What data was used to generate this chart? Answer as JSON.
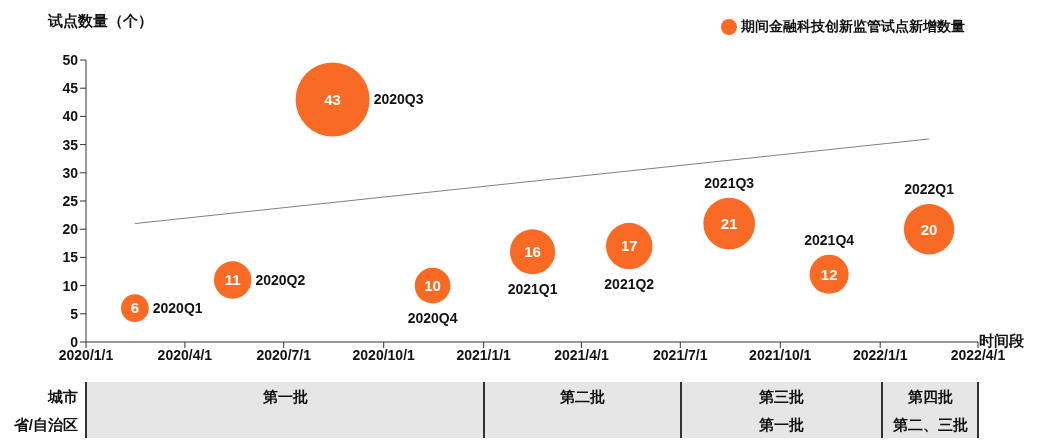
{
  "chart_data": {
    "type": "bubble",
    "ylabel": "试点数量（个）",
    "xlabel": "时间段",
    "x": [
      "2020-02-15",
      "2020-05-15",
      "2020-08-15",
      "2020-11-15",
      "2021-02-15",
      "2021-05-15",
      "2021-08-15",
      "2021-11-15",
      "2022-02-15"
    ],
    "series": [
      {
        "name": "期间金融科技创新监管试点新增数量",
        "color": "#f96a24",
        "marker": "circle",
        "values": [
          6,
          11,
          43,
          10,
          16,
          17,
          21,
          12,
          20
        ],
        "value_labels": [
          "6",
          "11",
          "43",
          "10",
          "16",
          "17",
          "21",
          "12",
          "20"
        ],
        "sizes": [
          0.14,
          0.256,
          1,
          0.233,
          0.372,
          0.395,
          0.488,
          0.279,
          0.465
        ]
      },
      {
        "type": "line",
        "color": "#808080",
        "marker": "none",
        "x": [
          "2020-02-15",
          "2022-02-15"
        ],
        "values": [
          21,
          36
        ]
      }
    ],
    "xlim": [
      "2020-01-01",
      "2022-04-01"
    ],
    "xticks": [
      {
        "value": "2020-01-01",
        "label": "2020/1/1"
      },
      {
        "value": "2020-04-01",
        "label": "2020/4/1"
      },
      {
        "value": "2020-07-01",
        "label": "2020/7/1"
      },
      {
        "value": "2020-10-01",
        "label": "2020/10/1"
      },
      {
        "value": "2021-01-01",
        "label": "2021/1/1"
      },
      {
        "value": "2021-04-01",
        "label": "2021/4/1"
      },
      {
        "value": "2021-07-01",
        "label": "2021/7/1"
      },
      {
        "value": "2021-10-01",
        "label": "2021/10/1"
      },
      {
        "value": "2022-01-01",
        "label": "2022/1/1"
      },
      {
        "value": "2022-04-01",
        "label": "2022/4/1"
      }
    ],
    "ylim": [
      0,
      50
    ],
    "yticks": [
      0,
      5,
      10,
      15,
      20,
      25,
      30,
      35,
      40,
      45,
      50
    ],
    "legend": "top right",
    "grid": false,
    "annotations": [
      {
        "text": "2020Q1",
        "x": "2020-02-15",
        "y": 6
      },
      {
        "text": "2020Q2",
        "x": "2020-05-15",
        "y": 11
      },
      {
        "text": "2020Q3",
        "x": "2020-08-15",
        "y": 43
      },
      {
        "text": "2020Q4",
        "x": "2020-11-15",
        "y": 10
      },
      {
        "text": "2021Q1",
        "x": "2021-02-15",
        "y": 16
      },
      {
        "text": "2021Q2",
        "x": "2021-05-15",
        "y": 17
      },
      {
        "text": "2021Q3",
        "x": "2021-08-15",
        "y": 21
      },
      {
        "text": "2021Q4",
        "x": "2021-11-15",
        "y": 12
      },
      {
        "text": "2022Q1",
        "x": "2022-02-15",
        "y": 20
      },
      "城市",
      "省/自治区",
      "第一批",
      "第二批",
      "第三批",
      "第一批",
      "第四批",
      "第二、三批"
    ]
  }
}
